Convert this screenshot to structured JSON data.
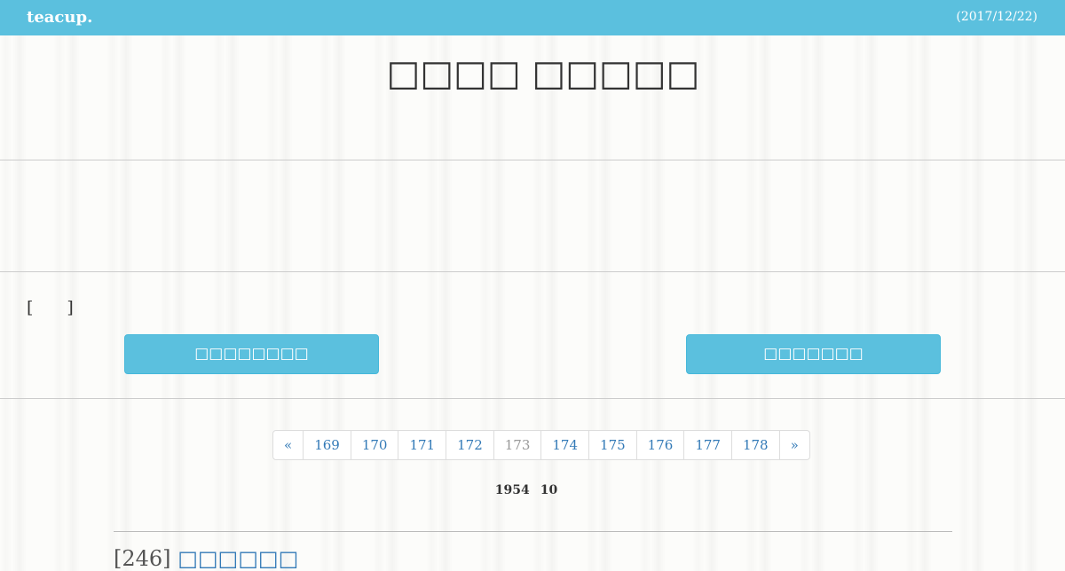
{
  "header": {
    "brand": "teacup.",
    "date": "(2017/12/22)"
  },
  "title": "□□□□ □□□□□",
  "section_label": "[　　]",
  "buttons": [
    "□□□□□□□□",
    "□□□□□□□"
  ],
  "pagination": {
    "prev": "«",
    "pages": [
      169,
      170,
      171,
      172,
      173,
      174,
      175,
      176,
      177,
      178
    ],
    "current": 173,
    "next": "»"
  },
  "stats": {
    "total": "1954",
    "per_page": "10"
  },
  "post": {
    "number": "[246]",
    "title": "□□□□□□"
  }
}
